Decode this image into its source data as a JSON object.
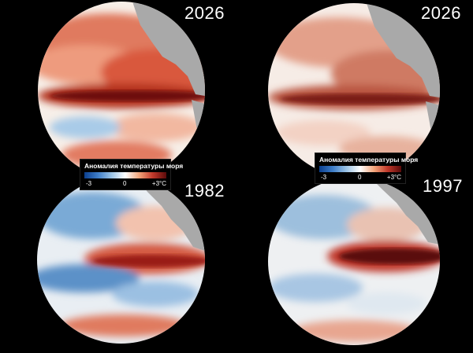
{
  "panels": [
    {
      "id": "top-left",
      "year": "2026",
      "style": "warm-strong"
    },
    {
      "id": "bottom-left",
      "year": "1982",
      "style": "mixed-cool"
    },
    {
      "id": "top-right",
      "year": "2026",
      "style": "warm-muted"
    },
    {
      "id": "bottom-right",
      "year": "1997",
      "style": "mixed-muted"
    }
  ],
  "legend": {
    "title": "Аномалия температуры моря",
    "min_label": "-3",
    "mid_label": "0",
    "max_label": "+3°C",
    "colors": {
      "cold": "#0b3f8f",
      "neutral": "#ffffff",
      "hot": "#5a0a0a"
    }
  },
  "colors": {
    "background": "#000000",
    "land": "#a9a9a9",
    "year_text": "#ffffff"
  }
}
